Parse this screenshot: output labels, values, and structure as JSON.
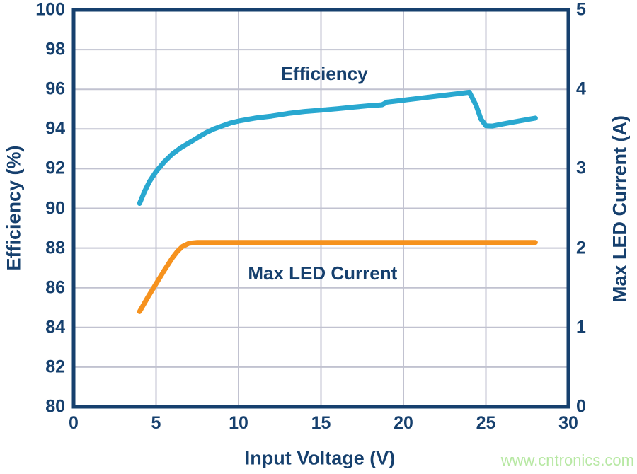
{
  "watermark": "www.cntronics.com",
  "colors": {
    "navy": "#16406e",
    "efficiency_cyan": "#29a8d0",
    "current_orange": "#f6921e",
    "gridline": "#c1c2d0",
    "watermark_green": "#b7e8a3",
    "background": "#ffffff"
  },
  "chart_data": {
    "type": "line",
    "title": "",
    "xlabel": "Input Voltage (V)",
    "ylabel_left": "Efficiency (%)",
    "ylabel_right": "Max LED Current (A)",
    "xlim": [
      0,
      30
    ],
    "ylim_left": [
      80,
      100
    ],
    "ylim_right": [
      0,
      5
    ],
    "x_ticks": [
      0,
      5,
      10,
      15,
      20,
      25,
      30
    ],
    "y_ticks_left": [
      80,
      82,
      84,
      86,
      88,
      90,
      92,
      94,
      96,
      98,
      100
    ],
    "y_ticks_right": [
      0,
      1,
      2,
      3,
      4,
      5
    ],
    "grid": true,
    "legend_position": "inline-annotations",
    "series": [
      {
        "name": "Efficiency",
        "axis": "left",
        "color": "#29a8d0",
        "points": [
          [
            4,
            90.25
          ],
          [
            4.3,
            90.85
          ],
          [
            4.6,
            91.35
          ],
          [
            5,
            91.85
          ],
          [
            5.5,
            92.35
          ],
          [
            6,
            92.75
          ],
          [
            6.5,
            93.05
          ],
          [
            7,
            93.3
          ],
          [
            7.5,
            93.55
          ],
          [
            8,
            93.8
          ],
          [
            8.5,
            94.0
          ],
          [
            9,
            94.15
          ],
          [
            9.5,
            94.3
          ],
          [
            10,
            94.4
          ],
          [
            11,
            94.55
          ],
          [
            12,
            94.65
          ],
          [
            13,
            94.78
          ],
          [
            14,
            94.88
          ],
          [
            15,
            94.95
          ],
          [
            16,
            95.02
          ],
          [
            17,
            95.1
          ],
          [
            18,
            95.18
          ],
          [
            18.7,
            95.22
          ],
          [
            19,
            95.35
          ],
          [
            20,
            95.45
          ],
          [
            21,
            95.55
          ],
          [
            22,
            95.65
          ],
          [
            23,
            95.75
          ],
          [
            24,
            95.85
          ],
          [
            24.4,
            95.2
          ],
          [
            24.7,
            94.5
          ],
          [
            25,
            94.16
          ],
          [
            25.4,
            94.15
          ],
          [
            26,
            94.25
          ],
          [
            27,
            94.4
          ],
          [
            28,
            94.55
          ]
        ]
      },
      {
        "name": "Max LED Current",
        "axis": "right",
        "color": "#f6921e",
        "points": [
          [
            4,
            1.2
          ],
          [
            4.5,
            1.38
          ],
          [
            5,
            1.55
          ],
          [
            5.5,
            1.72
          ],
          [
            6,
            1.88
          ],
          [
            6.3,
            1.96
          ],
          [
            6.6,
            2.02
          ],
          [
            7,
            2.06
          ],
          [
            7.5,
            2.07
          ],
          [
            9,
            2.07
          ],
          [
            28,
            2.07
          ]
        ]
      }
    ],
    "annotations": [
      {
        "text": "Efficiency",
        "x": 15.2,
        "y": 96.8,
        "axis": "left"
      },
      {
        "text": "Max LED Current",
        "x": 15.1,
        "y": 86.75,
        "axis": "left"
      }
    ]
  }
}
